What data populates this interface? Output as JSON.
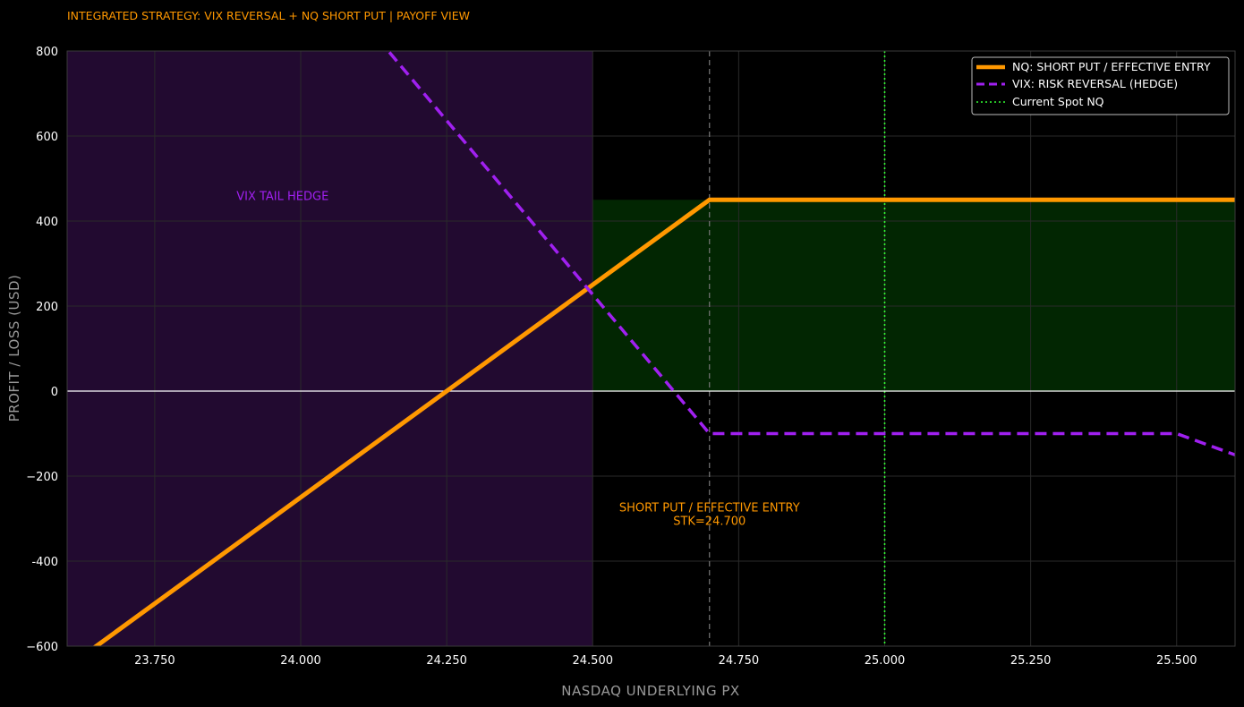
{
  "chart_data": {
    "type": "line",
    "title": "INTEGRATED STRATEGY: VIX REVERSAL + NQ SHORT PUT | PAYOFF VIEW",
    "xlabel": "NASDAQ UNDERLYING PX",
    "ylabel": "PROFIT / LOSS (USD)",
    "xlim": [
      23600,
      25600
    ],
    "ylim": [
      -600,
      800
    ],
    "x_ticks": [
      {
        "value": 23750,
        "label": "23.750"
      },
      {
        "value": 24000,
        "label": "24.000"
      },
      {
        "value": 24250,
        "label": "24.250"
      },
      {
        "value": 24500,
        "label": "24.500"
      },
      {
        "value": 24750,
        "label": "24.750"
      },
      {
        "value": 25000,
        "label": "25.000"
      },
      {
        "value": 25250,
        "label": "25.250"
      },
      {
        "value": 25500,
        "label": "25.500"
      }
    ],
    "y_ticks": [
      {
        "value": 800,
        "label": "800"
      },
      {
        "value": 600,
        "label": "600"
      },
      {
        "value": 400,
        "label": "400"
      },
      {
        "value": 200,
        "label": "200"
      },
      {
        "value": 0,
        "label": "0"
      },
      {
        "value": -200,
        "label": "−200"
      },
      {
        "value": -400,
        "label": "-400"
      },
      {
        "value": -600,
        "label": "−600"
      }
    ],
    "grid": true,
    "legend_position": "top-right",
    "series": [
      {
        "name": "NQ: SHORT PUT / EFFECTIVE ENTRY",
        "color": "#ff9800",
        "style": "solid",
        "x": [
          23600,
          24700,
          25600
        ],
        "y": [
          -650,
          450,
          450
        ]
      },
      {
        "name": "VIX: RISK REVERSAL (HEDGE)",
        "color": "#a020f0",
        "style": "dashed",
        "x": [
          23600,
          24700,
          25500,
          25600
        ],
        "y": [
          1700,
          -100,
          -100,
          -150
        ]
      }
    ],
    "reference_lines": [
      {
        "name": "Current Spot NQ",
        "x": 25000,
        "color": "#33ff33",
        "style": "dotted"
      },
      {
        "x": 24700,
        "color": "#777777",
        "style": "dashed"
      },
      {
        "y": 0,
        "color": "#ffffff",
        "style": "solid"
      }
    ],
    "shaded_regions": [
      {
        "x_range": [
          23600,
          24500
        ],
        "y_range": [
          -600,
          800
        ],
        "color": "#220a30",
        "label": "VIX TAIL HEDGE"
      },
      {
        "x_range": [
          24500,
          25600
        ],
        "y_range": [
          0,
          450
        ],
        "color": "#022602"
      }
    ],
    "annotations": [
      {
        "text": "VIX TAIL HEDGE",
        "x": 23890,
        "y": 460,
        "color": "#a020f0"
      },
      {
        "text": "SHORT PUT / EFFECTIVE ENTRY",
        "text2": "STK=24.700",
        "x": 24700,
        "y": -300,
        "color": "#ff9800"
      }
    ]
  }
}
